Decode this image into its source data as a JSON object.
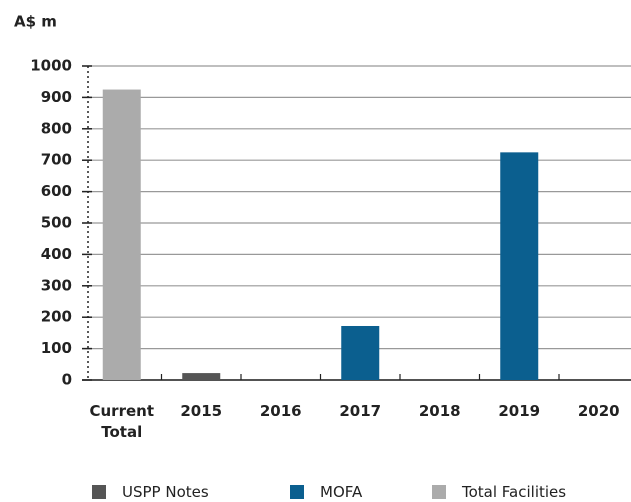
{
  "chart_data": {
    "type": "bar",
    "y_axis_label": "A$ m",
    "categories": [
      "Current Total",
      "2015",
      "2016",
      "2017",
      "2018",
      "2019",
      "2020"
    ],
    "series": [
      {
        "name": "USPP Notes",
        "color": "#555555",
        "values": [
          null,
          22,
          null,
          null,
          null,
          null,
          null
        ]
      },
      {
        "name": "MOFA",
        "color": "#0b5f8f",
        "values": [
          null,
          null,
          null,
          172,
          null,
          725,
          null
        ]
      },
      {
        "name": "Total Facilities",
        "color": "#ababab",
        "values": [
          925,
          null,
          null,
          null,
          null,
          null,
          null
        ]
      }
    ],
    "ylim": [
      0,
      1000
    ],
    "yticks": [
      0,
      100,
      200,
      300,
      400,
      500,
      600,
      700,
      800,
      900,
      1000
    ],
    "grid": true
  }
}
